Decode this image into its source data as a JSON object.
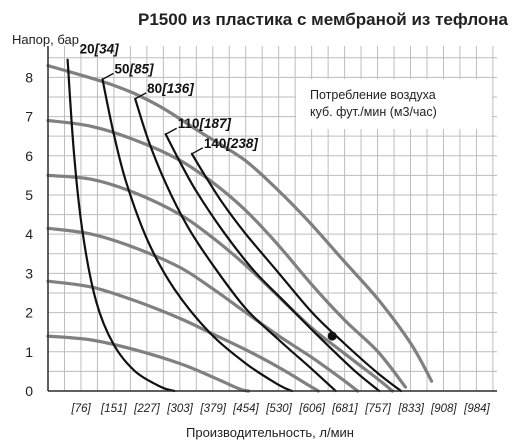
{
  "chart_data": {
    "type": "line",
    "title": "P1500 из пластика с мембраной из тефлона",
    "ylabel": "Напор, бар",
    "xlabel": "Производительность, л/мин",
    "x_tick_labels": [
      "[76]",
      "[151]",
      "[227]",
      "[303]",
      "[379]",
      "[454]",
      "[530]",
      "[606]",
      "[681]",
      "[757]",
      "[833]",
      "[908]",
      "[984]"
    ],
    "y_tick_labels": [
      "0",
      "1",
      "2",
      "3",
      "4",
      "5",
      "6",
      "7",
      "8"
    ],
    "xlim": [
      0,
      1030
    ],
    "ylim": [
      0,
      8.8
    ],
    "grid": true,
    "legend": {
      "line1": "Потребление воздуха",
      "line2": "куб. фут./мин (м3/час)",
      "placement": "top-right"
    },
    "pump_series": [
      {
        "points": [
          [
            0,
            8.3
          ],
          [
            150,
            7.8
          ],
          [
            250,
            7.3
          ],
          [
            350,
            6.6
          ],
          [
            450,
            5.9
          ],
          [
            530,
            5.1
          ],
          [
            600,
            4.3
          ],
          [
            680,
            3.3
          ],
          [
            760,
            2.3
          ],
          [
            833,
            1.2
          ],
          [
            880,
            0.25
          ]
        ]
      },
      {
        "points": [
          [
            0,
            6.9
          ],
          [
            100,
            6.75
          ],
          [
            200,
            6.4
          ],
          [
            300,
            5.9
          ],
          [
            380,
            5.3
          ],
          [
            454,
            4.6
          ],
          [
            530,
            3.7
          ],
          [
            606,
            2.7
          ],
          [
            681,
            1.8
          ],
          [
            757,
            1.0
          ],
          [
            820,
            0.1
          ]
        ]
      },
      {
        "points": [
          [
            0,
            5.5
          ],
          [
            100,
            5.4
          ],
          [
            200,
            5.05
          ],
          [
            303,
            4.5
          ],
          [
            379,
            3.9
          ],
          [
            454,
            3.2
          ],
          [
            530,
            2.4
          ],
          [
            606,
            1.6
          ],
          [
            681,
            0.95
          ],
          [
            757,
            0.3
          ],
          [
            790,
            0.0
          ]
        ]
      },
      {
        "points": [
          [
            0,
            4.15
          ],
          [
            100,
            4.0
          ],
          [
            200,
            3.65
          ],
          [
            303,
            3.15
          ],
          [
            379,
            2.6
          ],
          [
            454,
            2.0
          ],
          [
            530,
            1.4
          ],
          [
            606,
            0.85
          ],
          [
            681,
            0.25
          ],
          [
            710,
            0.0
          ]
        ]
      },
      {
        "points": [
          [
            0,
            2.8
          ],
          [
            100,
            2.65
          ],
          [
            200,
            2.3
          ],
          [
            303,
            1.85
          ],
          [
            379,
            1.45
          ],
          [
            454,
            1.05
          ],
          [
            530,
            0.6
          ],
          [
            590,
            0.2
          ],
          [
            620,
            0.0
          ]
        ]
      },
      {
        "points": [
          [
            0,
            1.4
          ],
          [
            100,
            1.3
          ],
          [
            200,
            1.05
          ],
          [
            303,
            0.7
          ],
          [
            379,
            0.35
          ],
          [
            440,
            0.05
          ],
          [
            460,
            0.0
          ]
        ]
      }
    ],
    "air_series": [
      {
        "label_num": "20",
        "label_m3": "[34]",
        "points": [
          [
            45,
            8.45
          ],
          [
            60,
            6.0
          ],
          [
            80,
            4.0
          ],
          [
            110,
            2.3
          ],
          [
            150,
            1.2
          ],
          [
            200,
            0.5
          ],
          [
            260,
            0.1
          ],
          [
            290,
            0.0
          ]
        ]
      },
      {
        "label_num": "50",
        "label_m3": "[85]",
        "points": [
          [
            125,
            7.95
          ],
          [
            150,
            6.6
          ],
          [
            180,
            5.3
          ],
          [
            230,
            3.8
          ],
          [
            290,
            2.6
          ],
          [
            370,
            1.5
          ],
          [
            454,
            0.7
          ],
          [
            530,
            0.15
          ],
          [
            560,
            0.0
          ]
        ]
      },
      {
        "label_num": "80",
        "label_m3": "[136]",
        "points": [
          [
            200,
            7.45
          ],
          [
            230,
            6.4
          ],
          [
            270,
            5.3
          ],
          [
            320,
            4.2
          ],
          [
            379,
            3.2
          ],
          [
            454,
            2.1
          ],
          [
            530,
            1.3
          ],
          [
            606,
            0.55
          ],
          [
            660,
            0.0
          ]
        ]
      },
      {
        "label_num": "110",
        "label_m3": "[187]",
        "points": [
          [
            270,
            6.55
          ],
          [
            300,
            5.9
          ],
          [
            340,
            5.1
          ],
          [
            400,
            4.1
          ],
          [
            470,
            3.1
          ],
          [
            540,
            2.3
          ],
          [
            620,
            1.4
          ],
          [
            700,
            0.55
          ],
          [
            760,
            0.0
          ]
        ]
      },
      {
        "label_num": "140",
        "label_m3": "[238]",
        "points": [
          [
            330,
            6.05
          ],
          [
            360,
            5.5
          ],
          [
            400,
            4.8
          ],
          [
            454,
            4.0
          ],
          [
            530,
            3.0
          ],
          [
            606,
            2.0
          ],
          [
            681,
            1.2
          ],
          [
            757,
            0.45
          ],
          [
            810,
            0.0
          ]
        ]
      }
    ],
    "marker": {
      "x": 652,
      "y": 1.4
    }
  }
}
